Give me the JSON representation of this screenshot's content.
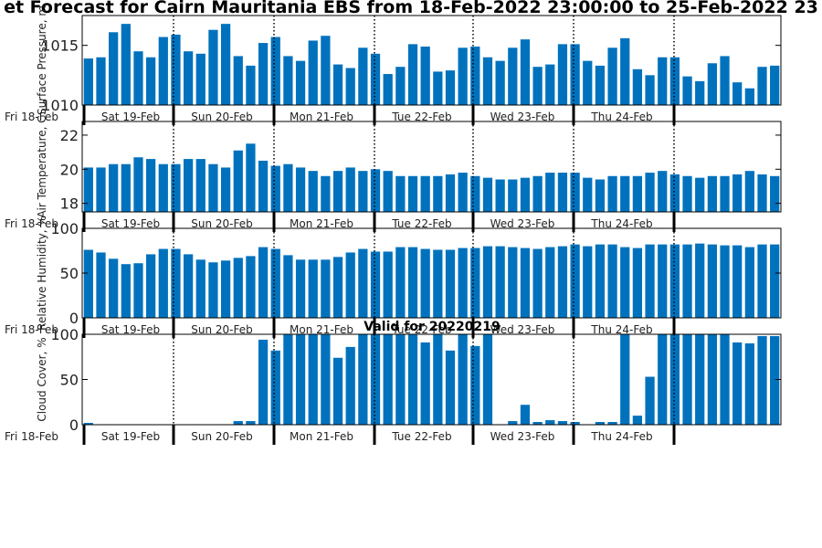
{
  "title": "et Forecast for Cairn Mauritania EBS from 18-Feb-2022 23:00:00 to 25-Feb-2022 23",
  "colors": {
    "bar": "#0072BD",
    "axis": "#000000",
    "background": "#ffffff"
  },
  "chart_data": [
    {
      "type": "bar",
      "ylabel": "Surface Pressure, m",
      "ylim": [
        1010,
        1017.5
      ],
      "yticks": [
        "1010",
        "1015"
      ],
      "ytick_values": [
        1010,
        1015
      ],
      "values": [
        1013.9,
        1014.0,
        1016.1,
        1016.8,
        1014.5,
        1014.0,
        1015.7,
        1015.9,
        1014.5,
        1014.3,
        1016.3,
        1016.8,
        1014.1,
        1013.3,
        1015.2,
        1015.7,
        1014.1,
        1013.7,
        1015.4,
        1015.8,
        1013.4,
        1013.1,
        1014.8,
        1014.3,
        1012.6,
        1013.2,
        1015.1,
        1014.9,
        1012.8,
        1012.9,
        1014.8,
        1014.9,
        1014.0,
        1013.7,
        1014.8,
        1015.5,
        1013.2,
        1013.4,
        1015.1,
        1015.1,
        1013.7,
        1013.3,
        1014.8,
        1015.6,
        1013.0,
        1012.5,
        1014.0,
        1014.0,
        1012.4,
        1012.0,
        1013.5,
        1014.1,
        1011.9,
        1011.4,
        1013.2,
        1013.3
      ]
    },
    {
      "type": "bar",
      "ylabel": "Air Temperature, C",
      "ylim": [
        17.5,
        22.8
      ],
      "yticks": [
        "18",
        "20",
        "22"
      ],
      "ytick_values": [
        18,
        20,
        22
      ],
      "values": [
        20.1,
        20.1,
        20.3,
        20.3,
        20.7,
        20.6,
        20.3,
        20.3,
        20.6,
        20.6,
        20.3,
        20.1,
        21.1,
        21.5,
        20.5,
        20.2,
        20.3,
        20.1,
        19.9,
        19.6,
        19.9,
        20.1,
        19.9,
        20.0,
        19.9,
        19.6,
        19.6,
        19.6,
        19.6,
        19.7,
        19.8,
        19.6,
        19.5,
        19.4,
        19.4,
        19.5,
        19.6,
        19.8,
        19.8,
        19.8,
        19.5,
        19.4,
        19.6,
        19.6,
        19.6,
        19.8,
        19.9,
        19.7,
        19.6,
        19.5,
        19.6,
        19.6,
        19.7,
        19.9,
        19.7,
        19.6
      ]
    },
    {
      "type": "bar",
      "ylabel": "Relative Humidity, %",
      "ylim": [
        0,
        100
      ],
      "yticks": [
        "0",
        "50",
        "100"
      ],
      "ytick_values": [
        0,
        50,
        100
      ],
      "values": [
        76,
        73,
        66,
        60,
        61,
        71,
        77,
        77,
        71,
        65,
        62,
        64,
        67,
        69,
        79,
        77,
        70,
        65,
        65,
        65,
        68,
        73,
        77,
        74,
        74,
        79,
        79,
        77,
        76,
        76,
        78,
        78,
        80,
        80,
        79,
        78,
        77,
        79,
        80,
        82,
        80,
        82,
        82,
        79,
        78,
        82,
        82,
        82,
        82,
        83,
        82,
        81,
        81,
        79,
        82,
        82
      ]
    },
    {
      "type": "bar",
      "title": "Valid for 20220219",
      "ylabel": "Cloud Cover, %",
      "ylim": [
        0,
        100
      ],
      "yticks": [
        "0",
        "50",
        "100"
      ],
      "ytick_values": [
        0,
        50,
        100
      ],
      "values": [
        2,
        0,
        0,
        0,
        0,
        0,
        0,
        0,
        0,
        0,
        0,
        0,
        4,
        4,
        94,
        82,
        100,
        100,
        100,
        100,
        74,
        86,
        100,
        100,
        100,
        100,
        100,
        91,
        100,
        82,
        100,
        87,
        100,
        0,
        4,
        22,
        3,
        5,
        4,
        3,
        0,
        3,
        3,
        100,
        10,
        53,
        100,
        100,
        100,
        100,
        100,
        100,
        91,
        90,
        98,
        98
      ]
    }
  ],
  "x_axis": {
    "first_label": "Fri 18-Feb",
    "day_labels": [
      "Sat 19-Feb",
      "Sun 20-Feb",
      "Mon 21-Feb",
      "Tue 22-Feb",
      "Wed 23-Feb",
      "Thu 24-Feb"
    ]
  }
}
